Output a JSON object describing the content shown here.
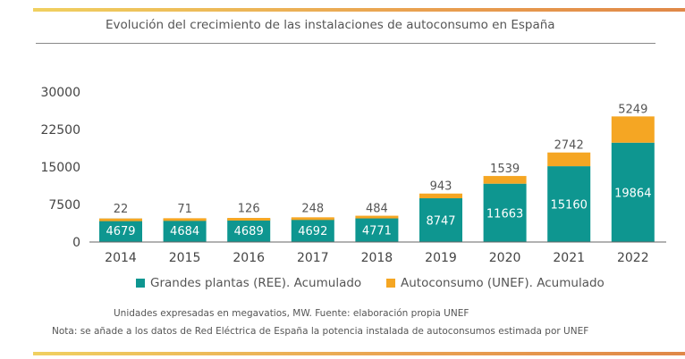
{
  "chart_data": {
    "type": "bar",
    "stacked": true,
    "title": "Evolución del crecimiento de las instalaciones de autoconsumo en España",
    "categories": [
      "2014",
      "2015",
      "2016",
      "2017",
      "2018",
      "2019",
      "2020",
      "2021",
      "2022"
    ],
    "series": [
      {
        "name": "Grandes plantas (REE). Acumulado",
        "color": "#0e9690",
        "values": [
          4679,
          4684,
          4689,
          4692,
          4771,
          8747,
          11663,
          15160,
          19864
        ]
      },
      {
        "name": "Autoconsumo (UNEF). Acumulado",
        "color": "#f5a623",
        "values": [
          22,
          71,
          126,
          248,
          484,
          943,
          1539,
          2742,
          5249
        ]
      }
    ],
    "yticks": [
      "0",
      "7500",
      "15000",
      "22500",
      "30000"
    ],
    "ylim": [
      0,
      30000
    ],
    "grid": false,
    "legend": "bottom"
  },
  "notes": {
    "units": "Unidades expresadas en megavatios, MW. Fuente: elaboración propia UNEF",
    "nota": "Nota: se añade a los datos de Red Eléctrica de España la potencia instalada de autoconsumos estimada por UNEF"
  }
}
